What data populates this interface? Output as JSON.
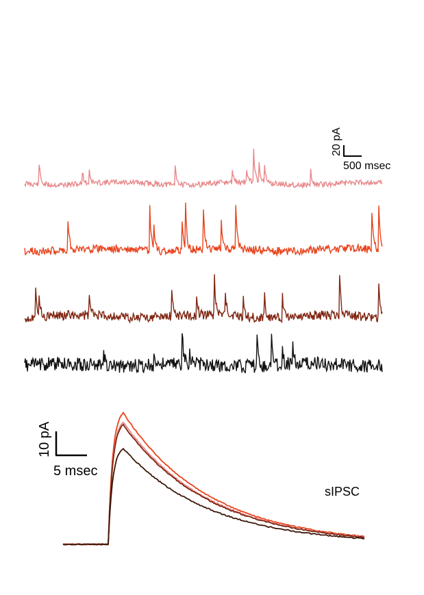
{
  "traces": [
    {
      "name": "trace-pink",
      "color": "#e8888a",
      "spikes": [
        [
          0.04,
          34
        ],
        [
          0.16,
          28
        ],
        [
          0.18,
          24
        ],
        [
          0.42,
          40
        ],
        [
          0.58,
          22
        ],
        [
          0.62,
          26
        ],
        [
          0.64,
          52
        ],
        [
          0.655,
          38
        ],
        [
          0.67,
          30
        ],
        [
          0.8,
          20
        ]
      ],
      "noise": 4,
      "seed": 11
    },
    {
      "name": "trace-orange",
      "color": "#e8431c",
      "spikes": [
        [
          0.12,
          58
        ],
        [
          0.35,
          62
        ],
        [
          0.36,
          50
        ],
        [
          0.45,
          65
        ],
        [
          0.44,
          52
        ],
        [
          0.5,
          62
        ],
        [
          0.55,
          42
        ],
        [
          0.59,
          65
        ],
        [
          0.97,
          68
        ],
        [
          0.99,
          66
        ]
      ],
      "noise": 6,
      "seed": 23
    },
    {
      "name": "trace-brown",
      "color": "#7f2410",
      "spikes": [
        [
          0.03,
          60
        ],
        [
          0.04,
          30
        ],
        [
          0.18,
          32
        ],
        [
          0.41,
          64
        ],
        [
          0.48,
          28
        ],
        [
          0.53,
          68
        ],
        [
          0.56,
          50
        ],
        [
          0.61,
          40
        ],
        [
          0.67,
          42
        ],
        [
          0.72,
          40
        ],
        [
          0.88,
          66
        ],
        [
          0.99,
          58
        ]
      ],
      "noise": 7,
      "seed": 37
    },
    {
      "name": "trace-black",
      "color": "#111111",
      "spikes": [
        [
          0.22,
          28
        ],
        [
          0.36,
          22
        ],
        [
          0.44,
          50
        ],
        [
          0.46,
          30
        ],
        [
          0.65,
          40
        ],
        [
          0.69,
          46
        ],
        [
          0.72,
          30
        ],
        [
          0.75,
          34
        ]
      ],
      "noise": 10,
      "seed": 53
    }
  ],
  "scale_top": {
    "y_label": "20 pA",
    "x_label": "500 msec"
  },
  "scale_bottom": {
    "y_label": "10 pA",
    "x_label": "5 msec"
  },
  "average_label": "sIPSC",
  "averages": [
    {
      "name": "avg-orange",
      "color": "#e8431c",
      "amplitude": 1.0
    },
    {
      "name": "avg-pink",
      "color": "#e8888a",
      "amplitude": 0.93
    },
    {
      "name": "avg-brown",
      "color": "#7f2410",
      "amplitude": 0.91
    },
    {
      "name": "avg-black",
      "color": "#3a1608",
      "amplitude": 0.73
    }
  ]
}
